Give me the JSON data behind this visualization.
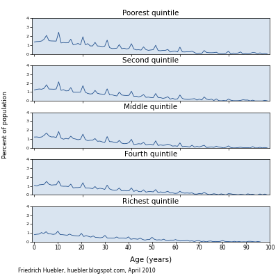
{
  "titles": [
    "Poorest quintile",
    "Second quintile",
    "Middle quintile",
    "Fourth quintile",
    "Richest quintile"
  ],
  "xlabel": "Age (years)",
  "ylabel": "Percent of population",
  "footnote": "Friedrich Huebler, huebler.blogspot.com, April 2010",
  "x_ticks": [
    0,
    10,
    20,
    30,
    40,
    50,
    60,
    70,
    80,
    90,
    100
  ],
  "y_ticks": [
    0,
    1,
    2,
    3,
    4
  ],
  "xlim": [
    -1,
    97
  ],
  "ylim": [
    0,
    4
  ],
  "line_color": "#1F4E8C",
  "panel_bg_color": "#D9E4F0",
  "fig_bg_color": "#FFFFFF",
  "base_amplitudes": [
    1.55,
    1.45,
    1.35,
    1.2,
    0.95
  ],
  "digit_pref_strength": [
    0.75,
    0.65,
    0.6,
    0.55,
    0.45
  ]
}
